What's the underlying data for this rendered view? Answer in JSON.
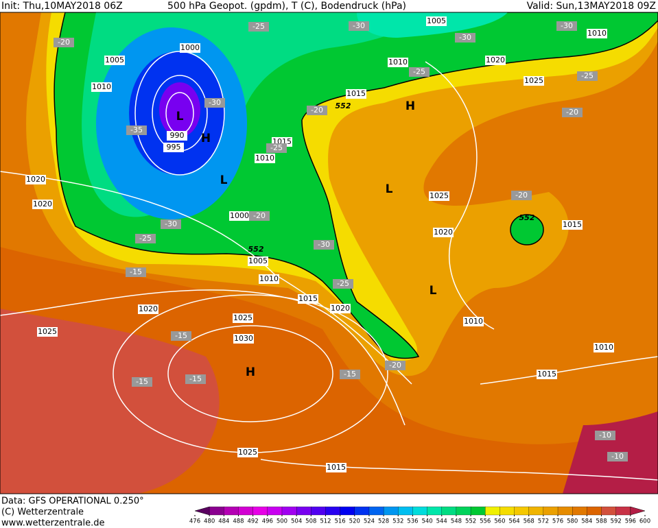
{
  "header": {
    "init": "Init: Thu,10MAY2018 06Z",
    "title": "500 hPa Geopot. (gpdm), T (C), Bodendruck (hPa)",
    "valid": "Valid: Sun,13MAY2018 09Z"
  },
  "footer": {
    "data": "Data: GFS OPERATIONAL 0.250°",
    "copyright": "(C) Wetterzentrale",
    "url": "www.wetterzentrale.de"
  },
  "colorbar": {
    "ticks": [
      476,
      480,
      484,
      488,
      492,
      496,
      500,
      504,
      508,
      512,
      516,
      520,
      524,
      528,
      532,
      536,
      540,
      544,
      548,
      552,
      556,
      560,
      564,
      568,
      572,
      576,
      580,
      584,
      588,
      592,
      596,
      600
    ],
    "colors": [
      "#5a0060",
      "#8a0090",
      "#b400b4",
      "#d200d2",
      "#e600e6",
      "#c800f0",
      "#a000f0",
      "#7800f0",
      "#5000f0",
      "#2800f0",
      "#0000f0",
      "#0032f0",
      "#0064f0",
      "#0096f0",
      "#00bef0",
      "#00dcdc",
      "#00e6aa",
      "#00dc82",
      "#00d25a",
      "#00c832",
      "#f0f000",
      "#f5dc00",
      "#f5c800",
      "#f0b400",
      "#eba000",
      "#e68c00",
      "#e17800",
      "#dc6400",
      "#d2503c",
      "#c83246",
      "#b41e46"
    ]
  },
  "map": {
    "isobar_labels": [
      "1005",
      "1000",
      "1010",
      "990",
      "995",
      "1015",
      "1010",
      "1020",
      "1020",
      "1000",
      "1005",
      "1010",
      "1015",
      "1020",
      "1020",
      "1025",
      "1025",
      "1030",
      "1025",
      "1015",
      "1005",
      "1010",
      "1015",
      "1020",
      "1025",
      "1010",
      "1025",
      "1020",
      "1015",
      "1010",
      "1010",
      "1015"
    ],
    "temperature_labels": [
      "-20",
      "-25",
      "-30",
      "-30",
      "-30",
      "-25",
      "-25",
      "-30",
      "-35",
      "-20",
      "-20",
      "-25",
      "-20",
      "-20",
      "-30",
      "-25",
      "-30",
      "-15",
      "-25",
      "-15",
      "-15",
      "-15",
      "-15",
      "-20",
      "-10",
      "-10"
    ],
    "thickness_labels": [
      "552",
      "552",
      "552"
    ],
    "pressure_centers": [
      "L",
      "H",
      "L",
      "H",
      "L",
      "L",
      "H"
    ]
  }
}
